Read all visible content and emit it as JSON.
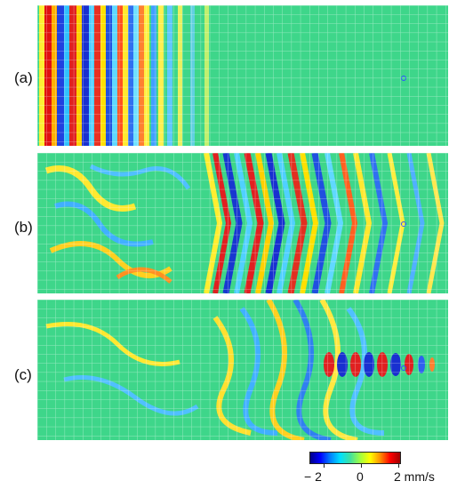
{
  "panels": [
    {
      "label": "(a)",
      "top": 6
    },
    {
      "label": "(b)",
      "top": 172
    },
    {
      "label": "(c)",
      "top": 337
    }
  ],
  "colorbar": {
    "min_label": "− 2",
    "mid_label": "0",
    "max_label": "2 mm/s",
    "colors": [
      "#00008a",
      "#0000ff",
      "#0080ff",
      "#00e0ff",
      "#40e0a0",
      "#a0ff40",
      "#ffff00",
      "#ff9000",
      "#ff0000",
      "#a00000"
    ]
  }
}
